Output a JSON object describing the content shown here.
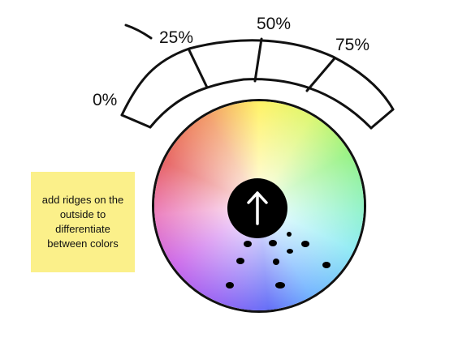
{
  "scale": {
    "labels": [
      {
        "id": "0",
        "text": "0%"
      },
      {
        "id": "25",
        "text": "25%"
      },
      {
        "id": "50",
        "text": "50%"
      },
      {
        "id": "75",
        "text": "75%"
      }
    ]
  },
  "note": {
    "text": "add ridges on the outside to differentiate between colors",
    "color": "#fbf08a"
  },
  "knob": {
    "icon": "up-arrow-icon",
    "color": "#000000"
  }
}
